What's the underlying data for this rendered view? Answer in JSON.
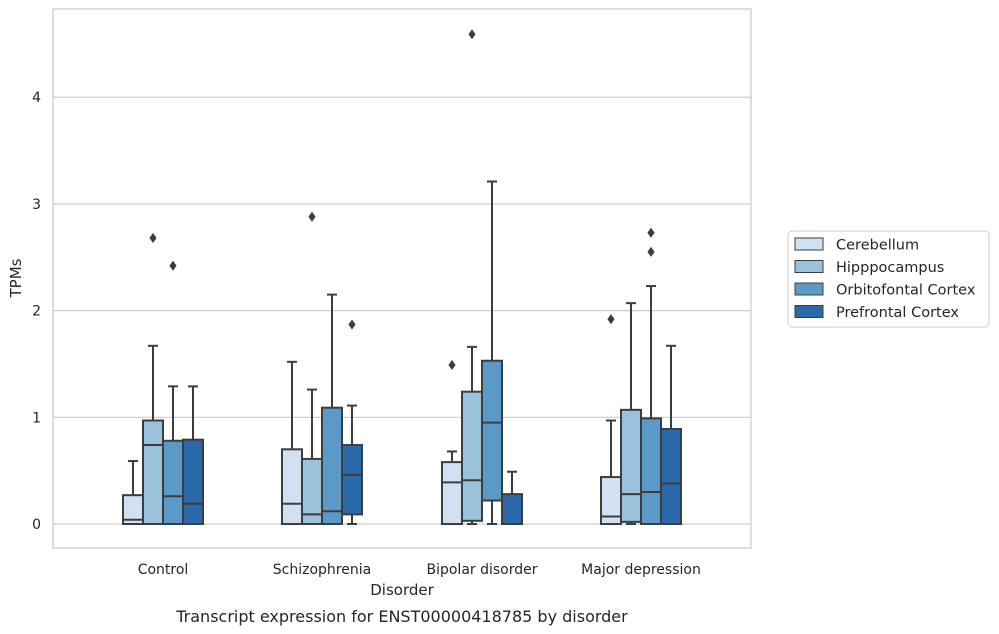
{
  "chart_data": {
    "type": "box",
    "xlabel": "Disorder",
    "ylabel": "TPMs",
    "caption": "Transcript expression for ENST00000418785 by disorder",
    "categories": [
      "Control",
      "Schizophrenia",
      "Bipolar disorder",
      "Major depression"
    ],
    "ylim": [
      -0.22,
      4.82
    ],
    "yticks": [
      0,
      1,
      2,
      3,
      4
    ],
    "grid": "horizontal",
    "legend_position": "right",
    "series": [
      {
        "name": "Cerebellum",
        "color": "#d0e1f2",
        "boxes": [
          {
            "whisker_low": 0.0,
            "q1": 0.0,
            "median": 0.04,
            "q3": 0.27,
            "whisker_high": 0.59,
            "outliers": []
          },
          {
            "whisker_low": 0.0,
            "q1": 0.0,
            "median": 0.19,
            "q3": 0.7,
            "whisker_high": 1.52,
            "outliers": []
          },
          {
            "whisker_low": 0.0,
            "q1": 0.0,
            "median": 0.39,
            "q3": 0.58,
            "whisker_high": 0.68,
            "outliers": [
              1.49
            ]
          },
          {
            "whisker_low": 0.0,
            "q1": 0.0,
            "median": 0.07,
            "q3": 0.44,
            "whisker_high": 0.97,
            "outliers": [
              1.92
            ]
          }
        ]
      },
      {
        "name": "Hipppocampus",
        "color": "#9ac2dc",
        "boxes": [
          {
            "whisker_low": 0.0,
            "q1": 0.0,
            "median": 0.74,
            "q3": 0.97,
            "whisker_high": 1.67,
            "outliers": [
              2.68
            ]
          },
          {
            "whisker_low": 0.0,
            "q1": 0.0,
            "median": 0.09,
            "q3": 0.61,
            "whisker_high": 1.26,
            "outliers": [
              2.88
            ]
          },
          {
            "whisker_low": 0.0,
            "q1": 0.03,
            "median": 0.41,
            "q3": 1.24,
            "whisker_high": 1.66,
            "outliers": [
              4.59
            ]
          },
          {
            "whisker_low": 0.0,
            "q1": 0.02,
            "median": 0.28,
            "q3": 1.07,
            "whisker_high": 2.07,
            "outliers": []
          }
        ]
      },
      {
        "name": "Orbitofontal Cortex",
        "color": "#5b9ac8",
        "boxes": [
          {
            "whisker_low": 0.0,
            "q1": 0.0,
            "median": 0.26,
            "q3": 0.78,
            "whisker_high": 1.29,
            "outliers": [
              2.42
            ]
          },
          {
            "whisker_low": 0.0,
            "q1": 0.0,
            "median": 0.12,
            "q3": 1.09,
            "whisker_high": 2.15,
            "outliers": []
          },
          {
            "whisker_low": 0.0,
            "q1": 0.22,
            "median": 0.95,
            "q3": 1.53,
            "whisker_high": 3.21,
            "outliers": []
          },
          {
            "whisker_low": 0.0,
            "q1": 0.0,
            "median": 0.3,
            "q3": 0.99,
            "whisker_high": 2.23,
            "outliers": [
              2.55,
              2.73
            ]
          }
        ]
      },
      {
        "name": "Prefrontal Cortex",
        "color": "#2b6aaa",
        "boxes": [
          {
            "whisker_low": 0.0,
            "q1": 0.0,
            "median": 0.19,
            "q3": 0.79,
            "whisker_high": 1.29,
            "outliers": []
          },
          {
            "whisker_low": 0.0,
            "q1": 0.09,
            "median": 0.46,
            "q3": 0.74,
            "whisker_high": 1.11,
            "outliers": [
              1.87
            ]
          },
          {
            "whisker_low": 0.0,
            "q1": 0.0,
            "median": 0.0,
            "q3": 0.28,
            "whisker_high": 0.49,
            "outliers": []
          },
          {
            "whisker_low": 0.0,
            "q1": 0.0,
            "median": 0.38,
            "q3": 0.89,
            "whisker_high": 1.67,
            "outliers": []
          }
        ]
      }
    ]
  }
}
